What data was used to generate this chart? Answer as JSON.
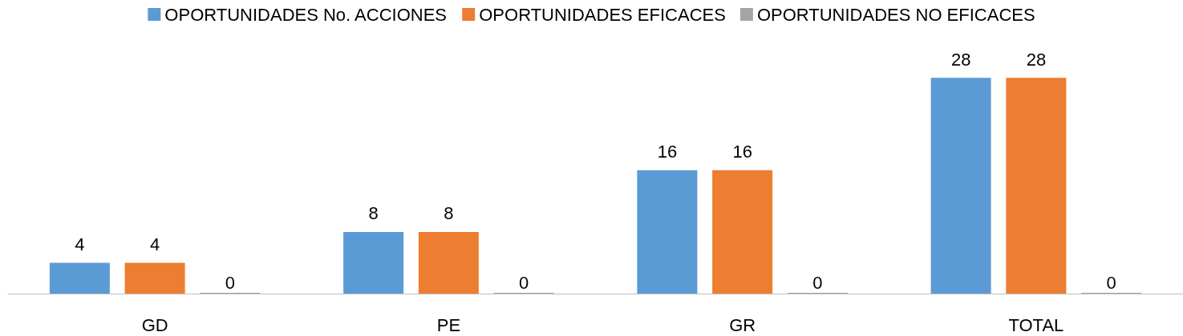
{
  "chart_data": {
    "type": "bar",
    "categories": [
      "GD",
      "PE",
      "GR",
      "TOTAL"
    ],
    "series": [
      {
        "name": "OPORTUNIDADES No. ACCIONES",
        "color": "#5b9bd5",
        "values": [
          4,
          8,
          16,
          28
        ]
      },
      {
        "name": "OPORTUNIDADES EFICACES",
        "color": "#ed7d31",
        "values": [
          4,
          8,
          16,
          28
        ]
      },
      {
        "name": "OPORTUNIDADES NO EFICACES",
        "color": "#a5a5a5",
        "values": [
          0,
          0,
          0,
          0
        ]
      }
    ],
    "data_labels": true,
    "legend": "top",
    "grid": false
  }
}
